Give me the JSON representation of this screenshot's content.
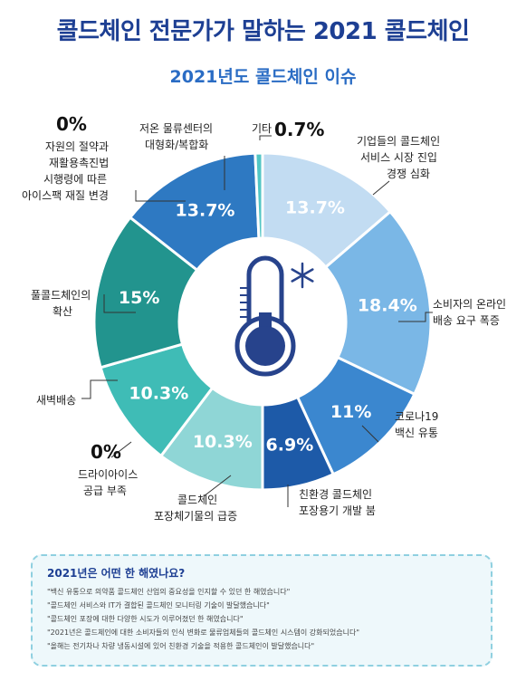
{
  "title": "콜드체인 전문가가 말하는 2021 콜드체인",
  "chart_data": {
    "type": "pie",
    "title": "2021년도 콜드체인 이슈",
    "slices": [
      {
        "label": "기업들의 콜드체인 서비스 시장 진입 경쟁 심화",
        "value": 13.7,
        "display": "13.7%",
        "color": "#c2dcf2"
      },
      {
        "label": "소비자의 온라인 배송 요구 폭증",
        "value": 18.4,
        "display": "18.4%",
        "color": "#7ab7e6"
      },
      {
        "label": "코로나19 백신 유통",
        "value": 11,
        "display": "11%",
        "color": "#3b87cf"
      },
      {
        "label": "친환경 콜드체인 포장용기 개발 붐",
        "value": 6.9,
        "display": "6.9%",
        "color": "#1d5aa8"
      },
      {
        "label": "콜드체인 포장체기물의 급증",
        "value": 10.3,
        "display": "10.3%",
        "color": "#8fd6d6"
      },
      {
        "label": "드라이아이스 공급 부족",
        "value": 0,
        "display": "0%",
        "color": "#49c4c1"
      },
      {
        "label": "새벽배송",
        "value": 10.3,
        "display": "10.3%",
        "color": "#3fbcb6"
      },
      {
        "label": "풀콜드체인의 확산",
        "value": 15,
        "display": "15%",
        "color": "#22948e"
      },
      {
        "label": "자원의 절약과 재활용촉진법 시행령에 따른 아이스팩 재질 변경",
        "value": 0,
        "display": "0%",
        "color": "#1f7f80"
      },
      {
        "label": "저온 물류센터의 대형화/복합화",
        "value": 13.7,
        "display": "13.7%",
        "color": "#2e79c2"
      },
      {
        "label": "기타",
        "value": 0.7,
        "display": "0.7%",
        "color": "#52c6c4"
      }
    ]
  },
  "labels": {
    "etc": "기타",
    "etc_pct": "0.7%",
    "top_right": [
      "기업들의 콜드체인",
      "서비스 시장 진입",
      "경쟁 심화"
    ],
    "right": [
      "소비자의 온라인",
      "배송 요구 폭증"
    ],
    "covid": [
      "코로나19",
      "백신 유통"
    ],
    "eco": [
      "친환경 콜드체인",
      "포장용기 개발 붐"
    ],
    "waste": [
      "콜드체인",
      "포장체기물의 급증"
    ],
    "dryice_pct": "0%",
    "dryice": [
      "드라이아이스",
      "공급 부족"
    ],
    "dawn": [
      "새벽배송"
    ],
    "fullcold": [
      "풀콜드체인의",
      "확산"
    ],
    "law_pct": "0%",
    "law": [
      "자원의 절약과",
      "재활용촉진법",
      "시행령에 따른",
      "아이스팩 재질 변경"
    ],
    "center": [
      "저온 물류센터의",
      "대형화/복합화"
    ]
  },
  "info": {
    "title": "2021년은 어떤 한 해였나요?",
    "items": [
      "\"백신 유통으로 의약품 콜드체인 산업의 중요성을 인지할 수 있던 한 해였습니다\"",
      "\"콜드체인 서비스와 IT가 결합된 콜드체인 모니터링 기술이 발달했습니다\"",
      "\"콜드체인 포장에 대한 다양한 시도가 이루어졌던 한 해였습니다\"",
      "\"2021년은 콜드체인에 대한 소비자들의 인식 변화로 물류업체들의 콜드체인 시스템이 강화되었습니다\"",
      "\"올해는 전기차나 차량 냉동시설에 있어 친환경 기술을 적용한 콜드체인이 발달했습니다\""
    ]
  }
}
